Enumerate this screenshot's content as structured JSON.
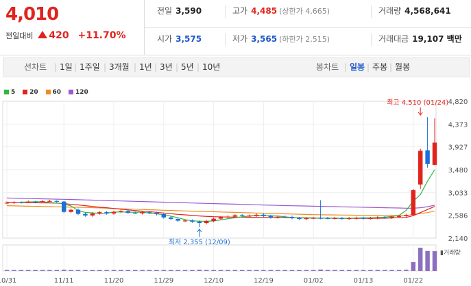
{
  "header": {
    "price": "4,010",
    "change_label": "전일대비",
    "change_value": "420",
    "change_pct": "+11.70%",
    "prev_label": "전일",
    "prev_value": "3,590",
    "high_label": "고가",
    "high_value": "4,485",
    "upper_limit": "(상한가 4,665)",
    "volume_label": "거래량",
    "volume_value": "4,568,641",
    "open_label": "시가",
    "open_value": "3,575",
    "low_label": "저가",
    "low_value": "3,565",
    "lower_limit": "(하한가 2,515)",
    "amount_label": "거래대금",
    "amount_value": "19,107 백만"
  },
  "toolbar": {
    "line_label": "선차트",
    "ranges": [
      "1일",
      "1주일",
      "3개월",
      "1년",
      "3년",
      "5년",
      "10년"
    ],
    "candle_label": "봉차트",
    "periods": [
      "일봉",
      "주봉",
      "월봉"
    ],
    "active_period": "일봉"
  },
  "legend": [
    {
      "name": "5",
      "color": "#2db83d"
    },
    {
      "name": "20",
      "color": "#e0241d"
    },
    {
      "name": "60",
      "color": "#f08a24"
    },
    {
      "name": "120",
      "color": "#9b59d0"
    }
  ],
  "colors": {
    "up": "#e0241d",
    "down": "#1b6fd8"
  },
  "chart_data": {
    "type": "candlestick",
    "y_ticks": [
      "4,820",
      "4,373",
      "3,927",
      "3,480",
      "3,033",
      "2,586",
      "2,140"
    ],
    "ylim": [
      2140,
      4820
    ],
    "x_ticks": [
      {
        "label": "10/31",
        "i": 0
      },
      {
        "label": "11/11",
        "i": 8
      },
      {
        "label": "11/20",
        "i": 15
      },
      {
        "label": "11/29",
        "i": 22
      },
      {
        "label": "12/10",
        "i": 29
      },
      {
        "label": "12/19",
        "i": 36
      },
      {
        "label": "01/02",
        "i": 43
      },
      {
        "label": "01/13",
        "i": 50
      },
      {
        "label": "01/22",
        "i": 57
      }
    ],
    "high_annotation": {
      "text": "최고 4,510 (01/24)",
      "i": 58,
      "value": 4510
    },
    "low_annotation": {
      "text": "최저 2,355 (12/09)",
      "i": 27,
      "value": 2355
    },
    "volume_label": "거래량",
    "candles": [
      [
        2826,
        2834,
        2858,
        2803
      ],
      [
        2834,
        2843,
        2867,
        2812
      ],
      [
        2843,
        2837,
        2861,
        2815
      ],
      [
        2837,
        2854,
        2878,
        2830
      ],
      [
        2854,
        2844,
        2868,
        2822
      ],
      [
        2844,
        2863,
        2887,
        2841
      ],
      [
        2863,
        2868,
        2892,
        2846
      ],
      [
        2868,
        2856,
        2880,
        2834
      ],
      [
        2856,
        2653,
        2865,
        2629
      ],
      [
        2653,
        2695,
        2719,
        2629
      ],
      [
        2695,
        2614,
        2719,
        2590
      ],
      [
        2614,
        2583,
        2638,
        2559
      ],
      [
        2583,
        2622,
        2646,
        2559
      ],
      [
        2622,
        2648,
        2672,
        2598
      ],
      [
        2648,
        2621,
        2672,
        2597
      ],
      [
        2621,
        2654,
        2678,
        2597
      ],
      [
        2654,
        2672,
        2696,
        2630
      ],
      [
        2672,
        2637,
        2696,
        2613
      ],
      [
        2637,
        2625,
        2661,
        2613
      ],
      [
        2625,
        2648,
        2672,
        2601
      ],
      [
        2648,
        2633,
        2672,
        2609
      ],
      [
        2633,
        2609,
        2657,
        2585
      ],
      [
        2609,
        2545,
        2633,
        2521
      ],
      [
        2545,
        2515,
        2569,
        2491
      ],
      [
        2515,
        2481,
        2539,
        2457
      ],
      [
        2481,
        2484,
        2508,
        2457
      ],
      [
        2484,
        2462,
        2508,
        2438
      ],
      [
        2462,
        2435,
        2486,
        2355
      ],
      [
        2435,
        2474,
        2498,
        2411
      ],
      [
        2474,
        2520,
        2544,
        2450
      ],
      [
        2520,
        2547,
        2571,
        2496
      ],
      [
        2547,
        2562,
        2586,
        2523
      ],
      [
        2562,
        2586,
        2610,
        2538
      ],
      [
        2586,
        2578,
        2610,
        2554
      ],
      [
        2578,
        2578,
        2602,
        2554
      ],
      [
        2578,
        2598,
        2622,
        2554
      ],
      [
        2598,
        2573,
        2622,
        2549
      ],
      [
        2573,
        2546,
        2597,
        2522
      ],
      [
        2546,
        2557,
        2581,
        2522
      ],
      [
        2557,
        2555,
        2581,
        2531
      ],
      [
        2555,
        2532,
        2579,
        2508
      ],
      [
        2532,
        2515,
        2556,
        2491
      ],
      [
        2515,
        2528,
        2552,
        2491
      ],
      [
        2528,
        2536,
        2552,
        2512
      ],
      [
        2536,
        2532,
        2883,
        2508
      ],
      [
        2532,
        2529,
        2556,
        2508
      ],
      [
        2529,
        2532,
        2556,
        2505
      ],
      [
        2532,
        2522,
        2556,
        2498
      ],
      [
        2522,
        2530,
        2554,
        2498
      ],
      [
        2530,
        2535,
        2559,
        2506
      ],
      [
        2535,
        2528,
        2559,
        2504
      ],
      [
        2528,
        2532,
        2556,
        2504
      ],
      [
        2532,
        2544,
        2568,
        2508
      ],
      [
        2544,
        2540,
        2568,
        2516
      ],
      [
        2540,
        2558,
        2582,
        2516
      ],
      [
        2558,
        2572,
        2596,
        2534
      ],
      [
        2572,
        2594,
        2618,
        2548
      ],
      [
        2594,
        3080,
        3104,
        2570
      ],
      [
        3190,
        3850,
        3890,
        3100
      ],
      [
        3860,
        3590,
        4510,
        3520
      ],
      [
        3575,
        4010,
        4485,
        3565
      ]
    ],
    "ma": {
      "5": {
        "from": 2,
        "values": [
          2843,
          2847,
          2852,
          2853,
          2837,
          2827,
          2807,
          2770,
          2680,
          2644,
          2634,
          2624,
          2630,
          2649,
          2653,
          2647,
          2649,
          2648,
          2629,
          2614,
          2600,
          2570,
          2539,
          2500,
          2479,
          2471,
          2470,
          2477,
          2497,
          2519,
          2538,
          2556,
          2573,
          2582,
          2580,
          2576,
          2570,
          2558,
          2545,
          2537,
          2533,
          2531,
          2531,
          2530,
          2530,
          2527,
          2529,
          2532,
          2536,
          2538,
          2542,
          2551,
          2563,
          2585,
          2683,
          2864,
          2994,
          3256,
          3478
        ]
      },
      "20": {
        "from": 0,
        "values": [
          2840,
          2838,
          2836,
          2834,
          2832,
          2830,
          2828,
          2825,
          2817,
          2800,
          2790,
          2775,
          2760,
          2745,
          2735,
          2720,
          2705,
          2692,
          2680,
          2668,
          2658,
          2645,
          2630,
          2618,
          2605,
          2595,
          2583,
          2573,
          2565,
          2560,
          2556,
          2553,
          2550,
          2549,
          2548,
          2547,
          2546,
          2545,
          2544,
          2543,
          2541,
          2539,
          2537,
          2535,
          2533,
          2530,
          2528,
          2527,
          2526,
          2526,
          2526,
          2527,
          2528,
          2530,
          2535,
          2540,
          2545,
          2580,
          2640,
          2700,
          2760
        ]
      },
      "60": {
        "from": 0,
        "values": [
          2775,
          2771,
          2768,
          2765,
          2762,
          2758,
          2755,
          2752,
          2750,
          2746,
          2743,
          2740,
          2736,
          2731,
          2726,
          2720,
          2715,
          2710,
          2706,
          2701,
          2696,
          2691,
          2686,
          2681,
          2676,
          2672,
          2668,
          2664,
          2660,
          2656,
          2652,
          2648,
          2644,
          2640,
          2636,
          2632,
          2628,
          2624,
          2620,
          2616,
          2612,
          2608,
          2604,
          2600,
          2598,
          2596,
          2594,
          2592,
          2590,
          2588,
          2586,
          2584,
          2582,
          2580,
          2580,
          2582,
          2585,
          2600,
          2620,
          2640,
          2670
        ]
      },
      "120": {
        "from": 0,
        "values": [
          2925,
          2921,
          2918,
          2915,
          2912,
          2909,
          2906,
          2903,
          2900,
          2896,
          2892,
          2888,
          2884,
          2880,
          2876,
          2872,
          2868,
          2864,
          2860,
          2856,
          2852,
          2848,
          2844,
          2840,
          2836,
          2832,
          2828,
          2824,
          2820,
          2816,
          2812,
          2808,
          2804,
          2800,
          2796,
          2792,
          2788,
          2784,
          2780,
          2777,
          2774,
          2771,
          2768,
          2765,
          2762,
          2759,
          2756,
          2753,
          2750,
          2747,
          2744,
          2741,
          2738,
          2735,
          2732,
          2729,
          2726,
          2725,
          2735,
          2755,
          2785
        ]
      }
    },
    "volume": [
      0.04,
      0.04,
      0.04,
      0.04,
      0.04,
      0.04,
      0.04,
      0.04,
      0.05,
      0.04,
      0.04,
      0.04,
      0.04,
      0.04,
      0.04,
      0.04,
      0.04,
      0.04,
      0.04,
      0.04,
      0.04,
      0.04,
      0.04,
      0.04,
      0.04,
      0.04,
      0.04,
      0.05,
      0.04,
      0.04,
      0.04,
      0.04,
      0.04,
      0.04,
      0.04,
      0.04,
      0.04,
      0.04,
      0.04,
      0.04,
      0.04,
      0.04,
      0.04,
      0.04,
      0.06,
      0.04,
      0.04,
      0.04,
      0.04,
      0.04,
      0.04,
      0.04,
      0.04,
      0.04,
      0.04,
      0.04,
      0.05,
      0.38,
      1.0,
      0.86,
      0.85
    ]
  }
}
